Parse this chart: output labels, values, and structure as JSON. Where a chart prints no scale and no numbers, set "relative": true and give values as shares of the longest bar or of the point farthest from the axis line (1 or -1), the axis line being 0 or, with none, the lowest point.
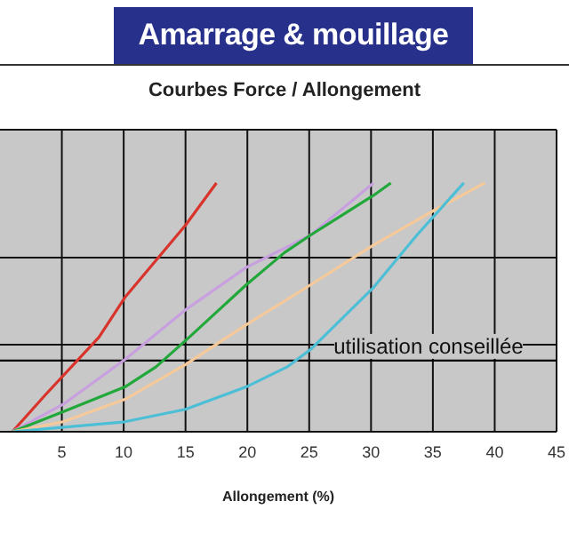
{
  "chart_data": {
    "type": "line",
    "title": "Amarrage & mouillage",
    "subtitle": "Courbes Force / Allongement",
    "xlabel": "Allongement (%)",
    "relative": true,
    "xlim": [
      0,
      45
    ],
    "xticks": [
      5,
      10,
      15,
      20,
      25,
      30,
      35,
      40,
      45
    ],
    "grid": true,
    "legend": false,
    "marker": "none",
    "line_style": "solid",
    "ref_lines": [
      {
        "axis": "y",
        "value": 0.286,
        "label": "utilisation conseillée",
        "color": "#000000"
      }
    ],
    "series": [
      {
        "color": "#d9342b",
        "x": [
          1,
          3.7,
          8,
          10.1,
          15,
          17.5
        ],
        "values": [
          0,
          0.15,
          0.38,
          0.54,
          0.83,
          1
        ]
      },
      {
        "color": "#c8a0e0",
        "x": [
          1,
          5.1,
          10.1,
          15,
          19.9,
          25.1,
          30.2
        ],
        "values": [
          0,
          0.11,
          0.29,
          0.49,
          0.66,
          0.79,
          1
        ]
      },
      {
        "color": "#22a83a",
        "x": [
          1,
          5.1,
          10.1,
          12.6,
          15.3,
          19.9,
          23,
          25.1,
          30.2,
          31.6
        ],
        "values": [
          0,
          0.08,
          0.18,
          0.26,
          0.38,
          0.59,
          0.72,
          0.79,
          0.95,
          1
        ]
      },
      {
        "color": "#f5c99a",
        "x": [
          1,
          5.1,
          10.1,
          15,
          19.9,
          25.1,
          30.2,
          35.1,
          39.2
        ],
        "values": [
          0,
          0.04,
          0.13,
          0.27,
          0.43,
          0.59,
          0.75,
          0.89,
          1
        ]
      },
      {
        "color": "#4cbfd6",
        "x": [
          1,
          10.1,
          15,
          19.9,
          23.2,
          25.1,
          30.2,
          33.7,
          37.5
        ],
        "values": [
          0,
          0.04,
          0.09,
          0.18,
          0.26,
          0.33,
          0.58,
          0.79,
          1
        ]
      }
    ]
  }
}
